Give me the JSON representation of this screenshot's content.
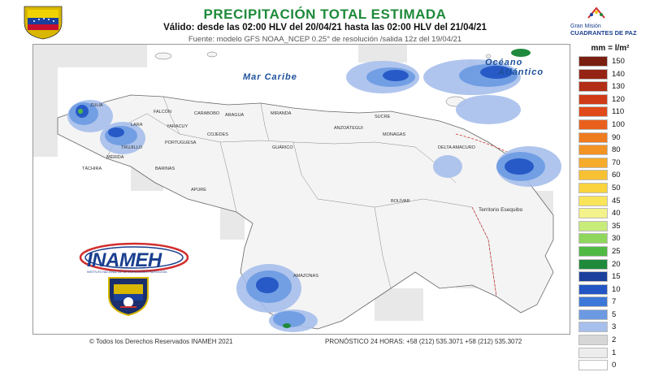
{
  "header": {
    "title": "PRECIPITACIÓN TOTAL ESTIMADA",
    "validity": "Válido: desde las 02:00 HLV del 20/04/21 hasta las 02:00 HLV del 21/04/21",
    "source": "Fuente: modelo GFS NOAA_NCEP 0.25° de resolución /salida 12z del 19/04/21"
  },
  "logos": {
    "right_line1": "Gran Misión",
    "right_line2": "CUADRANTES DE PAZ",
    "inameh": "INAMEH",
    "inameh_sub": "INSTITUTO NACIONAL DE METEOROLOGÍA E HIDROLOGÍA",
    "right_icon": "house-figures-icon",
    "left_icon": "venezuela-coat-of-arms-icon",
    "emblem_icon": "institutional-shield-icon"
  },
  "map": {
    "sea_label": "Mar Caribe",
    "ocean_label_1": "Océano",
    "ocean_label_2": "Atlántico",
    "territory_label": "Territorio Esequibo",
    "states": [
      {
        "name": "ZULIA"
      },
      {
        "name": "FALCÓN"
      },
      {
        "name": "LARA"
      },
      {
        "name": "YARACUY"
      },
      {
        "name": "CARABOBO"
      },
      {
        "name": "ARAGUA"
      },
      {
        "name": "MIRANDA"
      },
      {
        "name": "ANZOÁTEGUI"
      },
      {
        "name": "SUCRE"
      },
      {
        "name": "MONAGAS"
      },
      {
        "name": "DELTA AMACURO"
      },
      {
        "name": "BOLÍVAR"
      },
      {
        "name": "AMAZONAS"
      },
      {
        "name": "APURE"
      },
      {
        "name": "BARINAS"
      },
      {
        "name": "GUÁRICO"
      },
      {
        "name": "COJEDES"
      },
      {
        "name": "PORTUGUESA"
      },
      {
        "name": "TRUJILLO"
      },
      {
        "name": "MÉRIDA"
      },
      {
        "name": "TÁCHIRA"
      }
    ]
  },
  "legend": {
    "title": "mm = l/m²",
    "items": [
      {
        "value": "150",
        "color": "#7a1e10"
      },
      {
        "value": "140",
        "color": "#962414"
      },
      {
        "value": "130",
        "color": "#b22e16"
      },
      {
        "value": "120",
        "color": "#cf3a17"
      },
      {
        "value": "110",
        "color": "#e04a1a"
      },
      {
        "value": "100",
        "color": "#e9601c"
      },
      {
        "value": "90",
        "color": "#ef7b1f"
      },
      {
        "value": "80",
        "color": "#f29324"
      },
      {
        "value": "70",
        "color": "#f6ab2a"
      },
      {
        "value": "60",
        "color": "#f8c133"
      },
      {
        "value": "50",
        "color": "#f9d43e"
      },
      {
        "value": "45",
        "color": "#fae45a"
      },
      {
        "value": "40",
        "color": "#f4f28a"
      },
      {
        "value": "35",
        "color": "#c7ec7a"
      },
      {
        "value": "30",
        "color": "#8fd75c"
      },
      {
        "value": "25",
        "color": "#4fb944"
      },
      {
        "value": "20",
        "color": "#1f8a3c"
      },
      {
        "value": "15",
        "color": "#1a3f9c"
      },
      {
        "value": "10",
        "color": "#2356c4"
      },
      {
        "value": "7",
        "color": "#3d78d8"
      },
      {
        "value": "5",
        "color": "#6b9ae2"
      },
      {
        "value": "3",
        "color": "#a7bfec"
      },
      {
        "value": "2",
        "color": "#d6d6d6"
      },
      {
        "value": "1",
        "color": "#ececec"
      },
      {
        "value": "0",
        "color": "#ffffff"
      }
    ]
  },
  "footer": {
    "copyright": "© Todos los Derechos Reservados INAMEH 2021",
    "phones": "PRONÓSTICO 24 HORAS: +58 (212) 535.3071 +58 (212) 535.3072"
  }
}
